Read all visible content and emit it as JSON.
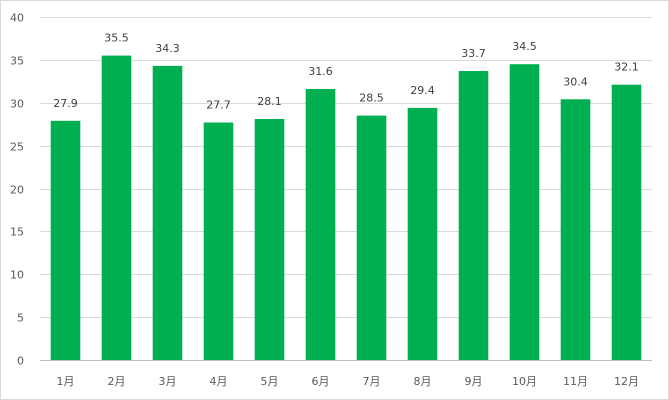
{
  "chart_data": {
    "type": "bar",
    "categories": [
      "1月",
      "2月",
      "3月",
      "4月",
      "5月",
      "6月",
      "7月",
      "8月",
      "9月",
      "10月",
      "11月",
      "12月"
    ],
    "values": [
      27.9,
      35.5,
      34.3,
      27.7,
      28.1,
      31.6,
      28.5,
      29.4,
      33.7,
      34.5,
      30.4,
      32.1
    ],
    "data_labels": [
      "27.9",
      "35.5",
      "34.3",
      "27.7",
      "28.1",
      "31.6",
      "28.5",
      "29.4",
      "33.7",
      "34.5",
      "30.4",
      "32.1"
    ],
    "title": "",
    "xlabel": "",
    "ylabel": "",
    "ylim": [
      0,
      40
    ],
    "yticks": [
      0,
      5,
      10,
      15,
      20,
      25,
      30,
      35,
      40
    ],
    "ytick_labels": [
      "0",
      "5",
      "10",
      "15",
      "20",
      "25",
      "30",
      "35",
      "40"
    ],
    "grid": true,
    "legend": false,
    "bar_color": "#00b050"
  }
}
